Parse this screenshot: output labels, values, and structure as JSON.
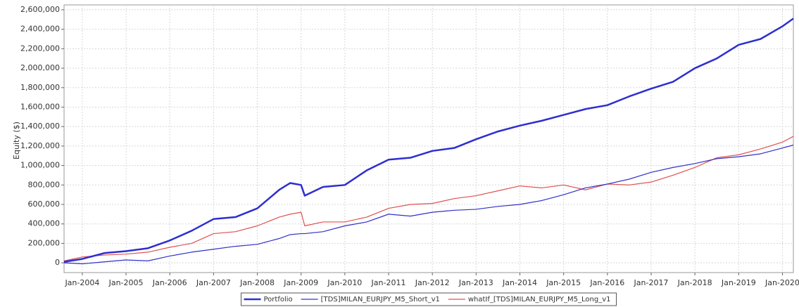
{
  "chart_data": {
    "type": "line",
    "y_label": "Equity ($)",
    "x": [
      "2003-08",
      "2004-01",
      "2004-07",
      "2005-01",
      "2005-07",
      "2006-01",
      "2006-07",
      "2007-01",
      "2007-07",
      "2008-01",
      "2008-07",
      "2008-10",
      "2009-01",
      "2009-02",
      "2009-07",
      "2010-01",
      "2010-07",
      "2011-01",
      "2011-07",
      "2012-01",
      "2012-07",
      "2013-01",
      "2013-07",
      "2014-01",
      "2014-07",
      "2015-01",
      "2015-07",
      "2016-01",
      "2016-07",
      "2017-01",
      "2017-07",
      "2018-01",
      "2018-07",
      "2019-01",
      "2019-07",
      "2020-01",
      "2020-04"
    ],
    "series": [
      {
        "name": "Portfolio",
        "color": "#2e2ed0",
        "width": 2.5,
        "values": [
          10000,
          40000,
          100000,
          120000,
          150000,
          230000,
          330000,
          450000,
          470000,
          560000,
          750000,
          820000,
          800000,
          690000,
          780000,
          800000,
          950000,
          1060000,
          1080000,
          1150000,
          1180000,
          1270000,
          1350000,
          1410000,
          1460000,
          1520000,
          1580000,
          1620000,
          1710000,
          1790000,
          1860000,
          2000000,
          2100000,
          2240000,
          2300000,
          2430000,
          2510000
        ]
      },
      {
        "name": "[TDS]MILAN_EURJPY_M5_Short_v1",
        "color": "#3030c8",
        "width": 1.2,
        "values": [
          0,
          -10000,
          10000,
          30000,
          20000,
          70000,
          110000,
          140000,
          170000,
          190000,
          250000,
          290000,
          300000,
          300000,
          320000,
          380000,
          420000,
          500000,
          480000,
          520000,
          540000,
          550000,
          580000,
          600000,
          640000,
          700000,
          770000,
          810000,
          860000,
          930000,
          980000,
          1020000,
          1070000,
          1090000,
          1120000,
          1180000,
          1210000
        ]
      },
      {
        "name": "whatIf_[TDS]MILAN_EURJPY_M5_Long_v1",
        "color": "#e05050",
        "width": 1.2,
        "values": [
          20000,
          60000,
          80000,
          90000,
          110000,
          160000,
          200000,
          300000,
          320000,
          380000,
          470000,
          500000,
          520000,
          380000,
          420000,
          420000,
          470000,
          560000,
          600000,
          610000,
          660000,
          690000,
          740000,
          790000,
          770000,
          800000,
          750000,
          810000,
          800000,
          830000,
          900000,
          980000,
          1080000,
          1110000,
          1170000,
          1240000,
          1300000
        ]
      }
    ],
    "xlim": [
      "2003-08",
      "2020-04"
    ],
    "xticks": [
      {
        "value": "2004-01",
        "label": "Jan-2004"
      },
      {
        "value": "2005-01",
        "label": "Jan-2005"
      },
      {
        "value": "2006-01",
        "label": "Jan-2006"
      },
      {
        "value": "2007-01",
        "label": "Jan-2007"
      },
      {
        "value": "2008-01",
        "label": "Jan-2008"
      },
      {
        "value": "2009-01",
        "label": "Jan-2009"
      },
      {
        "value": "2010-01",
        "label": "Jan-2010"
      },
      {
        "value": "2011-01",
        "label": "Jan-2011"
      },
      {
        "value": "2012-01",
        "label": "Jan-2012"
      },
      {
        "value": "2013-01",
        "label": "Jan-2013"
      },
      {
        "value": "2014-01",
        "label": "Jan-2014"
      },
      {
        "value": "2015-01",
        "label": "Jan-2015"
      },
      {
        "value": "2016-01",
        "label": "Jan-2016"
      },
      {
        "value": "2017-01",
        "label": "Jan-2017"
      },
      {
        "value": "2018-01",
        "label": "Jan-2018"
      },
      {
        "value": "2019-01",
        "label": "Jan-2019"
      },
      {
        "value": "2020-01",
        "label": "Jan-2020"
      }
    ],
    "ylim": [
      -100000,
      2650000
    ],
    "yticks": [
      0,
      {
        "value": 200000,
        "label": "200,000"
      },
      {
        "value": 400000,
        "label": "400,000"
      },
      {
        "value": 600000,
        "label": "600,000"
      },
      {
        "value": 800000,
        "label": "800,000"
      },
      {
        "value": 1000000,
        "label": "1,000,000"
      },
      {
        "value": 1200000,
        "label": "1,200,000"
      },
      {
        "value": 1400000,
        "label": "1,400,000"
      },
      {
        "value": 1600000,
        "label": "1,600,000"
      },
      {
        "value": 1800000,
        "label": "1,800,000"
      },
      {
        "value": 2000000,
        "label": "2,000,000"
      },
      {
        "value": 2200000,
        "label": "2,200,000"
      },
      {
        "value": 2400000,
        "label": "2,400,000"
      },
      {
        "value": 2600000,
        "label": "2,600,000"
      }
    ],
    "grid": true,
    "legend": "bottom"
  }
}
